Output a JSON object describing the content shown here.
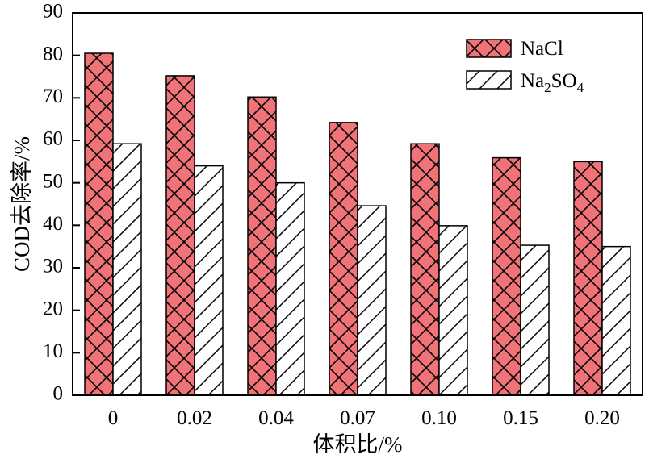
{
  "chart_data": {
    "type": "bar",
    "title": "",
    "xlabel": "体积比/%",
    "ylabel": "COD去除率/%",
    "ylim": [
      0,
      90
    ],
    "yticks": [
      "0",
      "10",
      "20",
      "30",
      "40",
      "50",
      "60",
      "70",
      "80",
      "90"
    ],
    "categories": [
      "0",
      "0.02",
      "0.04",
      "0.07",
      "0.10",
      "0.15",
      "0.20"
    ],
    "series": [
      {
        "name": "NaCl",
        "legend_label": "NaCl",
        "color": "#f07378",
        "pattern": "crosshatch",
        "values": [
          80.5,
          75.2,
          70.2,
          64.2,
          59.2,
          55.9,
          55.0
        ]
      },
      {
        "name": "Na2SO4",
        "legend_label": {
          "a": "Na",
          "b": "2",
          "c": "SO",
          "d": "4"
        },
        "color": "#ffffff",
        "pattern": "diagonal",
        "values": [
          59.2,
          54.0,
          50.0,
          44.6,
          39.9,
          35.3,
          35.0
        ]
      }
    ],
    "grid": false,
    "legend_position": "top-right"
  }
}
